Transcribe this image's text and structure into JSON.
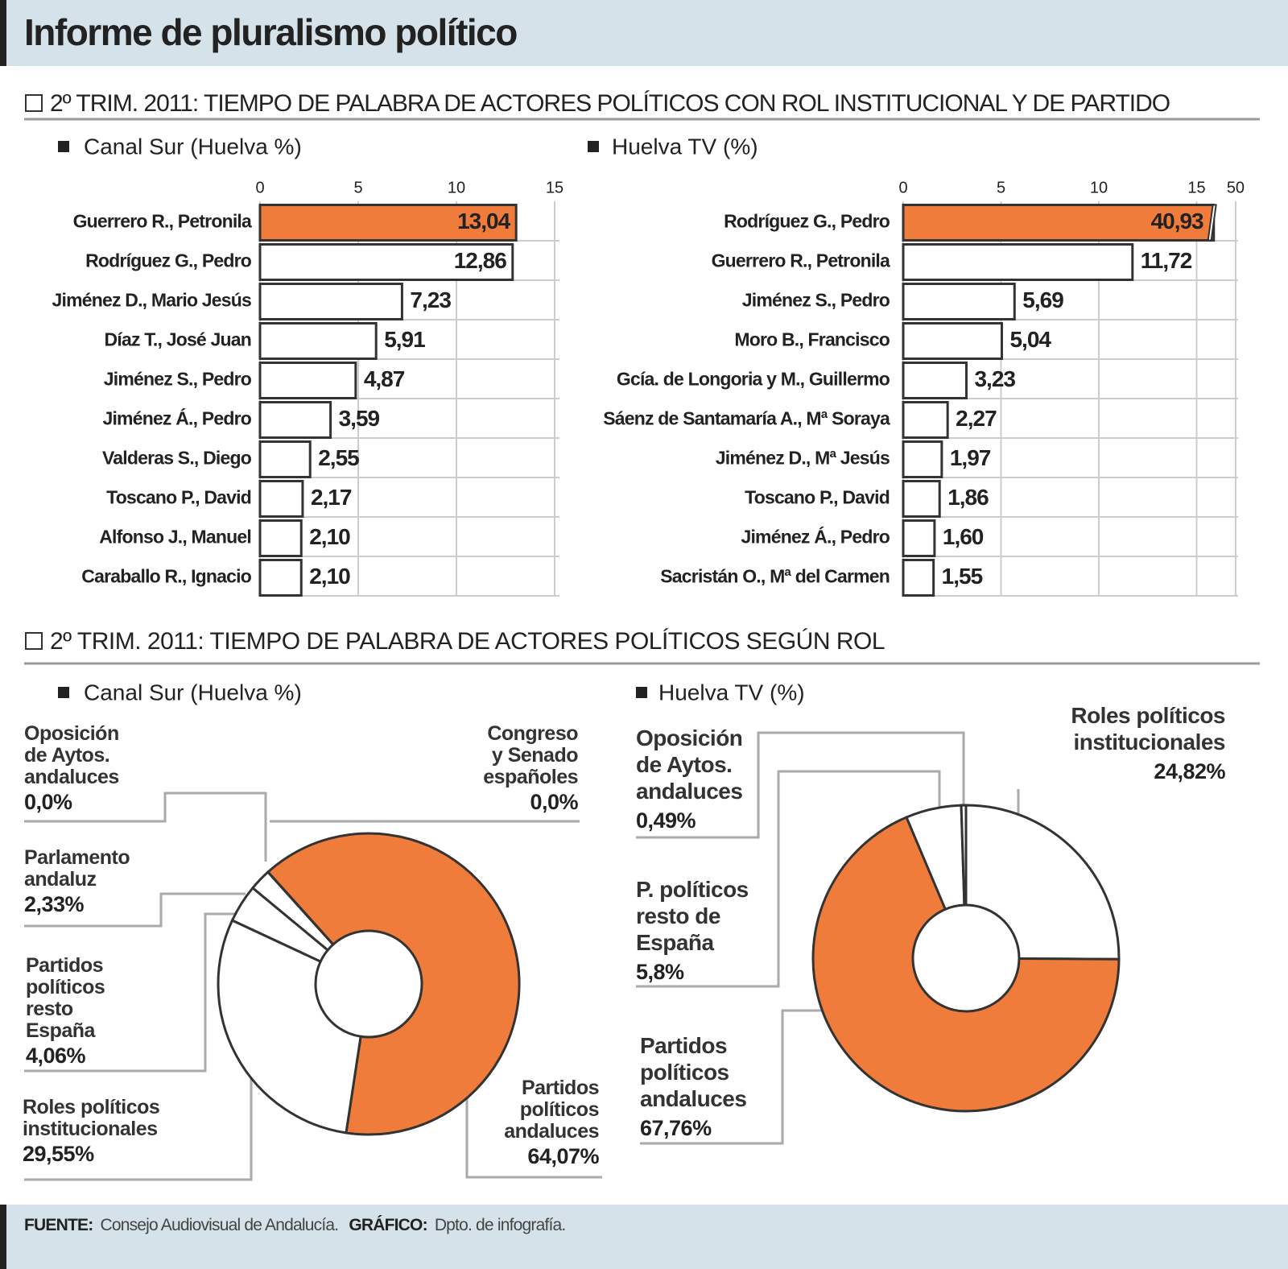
{
  "title": "Informe de pluralismo político",
  "section_titles": [
    "2º TRIM. 2011: TIEMPO DE PALABRA DE ACTORES POLÍTICOS CON ROL INSTITUCIONAL Y DE PARTIDO",
    "2º TRIM. 2011: TIEMPO DE PALABRA DE ACTORES POLÍTICOS SEGÚN ROL"
  ],
  "chart_data": [
    {
      "type": "bar",
      "orientation": "horizontal",
      "title": "Canal Sur (Huelva %)",
      "categories": [
        "Guerrero R., Petronila",
        "Rodríguez G., Pedro",
        "Jiménez D., Mario Jesús",
        "Díaz T., José Juan",
        "Jiménez S., Pedro",
        "Jiménez Á., Pedro",
        "Valderas S., Diego",
        "Toscano P., David",
        "Alfonso J., Manuel",
        "Caraballo R., Ignacio"
      ],
      "values": [
        13.04,
        12.86,
        7.23,
        5.91,
        4.87,
        3.59,
        2.55,
        2.17,
        2.1,
        2.1
      ],
      "value_labels": [
        "13,04",
        "12,86",
        "7,23",
        "5,91",
        "4,87",
        "3,59",
        "2,55",
        "2,17",
        "2,10",
        "2,10"
      ],
      "colors": [
        "#f07c3c",
        "#ffffff",
        "#ffffff",
        "#ffffff",
        "#ffffff",
        "#ffffff",
        "#ffffff",
        "#ffffff",
        "#ffffff",
        "#ffffff"
      ],
      "xlim": [
        0,
        15
      ],
      "xticks": [
        0,
        5,
        10,
        15
      ],
      "grid": true
    },
    {
      "type": "bar",
      "orientation": "horizontal",
      "title": "Huelva TV (%)",
      "categories": [
        "Rodríguez G., Pedro",
        "Guerrero R., Petronila",
        "Jiménez S., Pedro",
        "Moro B., Francisco",
        "Gcía. de Longoria y M., Guillermo",
        "Sáenz de Santamaría A., Mª Soraya",
        "Jiménez D., Mª Jesús",
        "Toscano P., David",
        "Jiménez Á., Pedro",
        "Sacristán O., Mª del Carmen"
      ],
      "values": [
        40.93,
        11.72,
        5.69,
        5.04,
        3.23,
        2.27,
        1.97,
        1.86,
        1.6,
        1.55
      ],
      "value_labels": [
        "40,93",
        "11,72",
        "5,69",
        "5,04",
        "3,23",
        "2,27",
        "1,97",
        "1,86",
        "1,60",
        "1,55"
      ],
      "colors": [
        "#f07c3c",
        "#ffffff",
        "#ffffff",
        "#ffffff",
        "#ffffff",
        "#ffffff",
        "#ffffff",
        "#ffffff",
        "#ffffff",
        "#ffffff"
      ],
      "xlim": [
        0,
        50
      ],
      "xticks": [
        0,
        5,
        10,
        15,
        50
      ],
      "xbreak": [
        15.5,
        49
      ],
      "grid": true
    },
    {
      "type": "pie",
      "donut": true,
      "title": "Canal Sur (Huelva %)",
      "categories": [
        "Partidos políticos andaluces",
        "Roles políticos institucionales",
        "Partidos políticos resto España",
        "Parlamento andaluz",
        "Congreso y Senado españoles",
        "Oposición de Aytos. andaluces"
      ],
      "values": [
        64.07,
        29.55,
        4.06,
        2.33,
        0.0,
        0.0
      ],
      "value_labels": [
        "64,07%",
        "29,55%",
        "4,06%",
        "2,33%",
        "0,0%",
        "0,0%"
      ],
      "colors": [
        "#f07c3c",
        "#ffffff",
        "#ffffff",
        "#ffffff",
        "#ffffff",
        "#ffffff"
      ]
    },
    {
      "type": "pie",
      "donut": true,
      "title": "Huelva TV (%)",
      "categories": [
        "Roles políticos institucionales",
        "Partidos políticos andaluces",
        "P. políticos resto de España",
        "Oposición de Aytos. andaluces"
      ],
      "values": [
        24.82,
        67.76,
        5.8,
        0.49
      ],
      "value_labels": [
        "24,82%",
        "67,76%",
        "5,8%",
        "0,49%"
      ],
      "colors": [
        "#ffffff",
        "#f07c3c",
        "#ffffff",
        "#ffffff"
      ]
    }
  ],
  "footer": [
    "FUENTE:",
    "Consejo Audiovisual de Andalucía.",
    "GRÁFICO:",
    "Dpto. de infografía."
  ]
}
